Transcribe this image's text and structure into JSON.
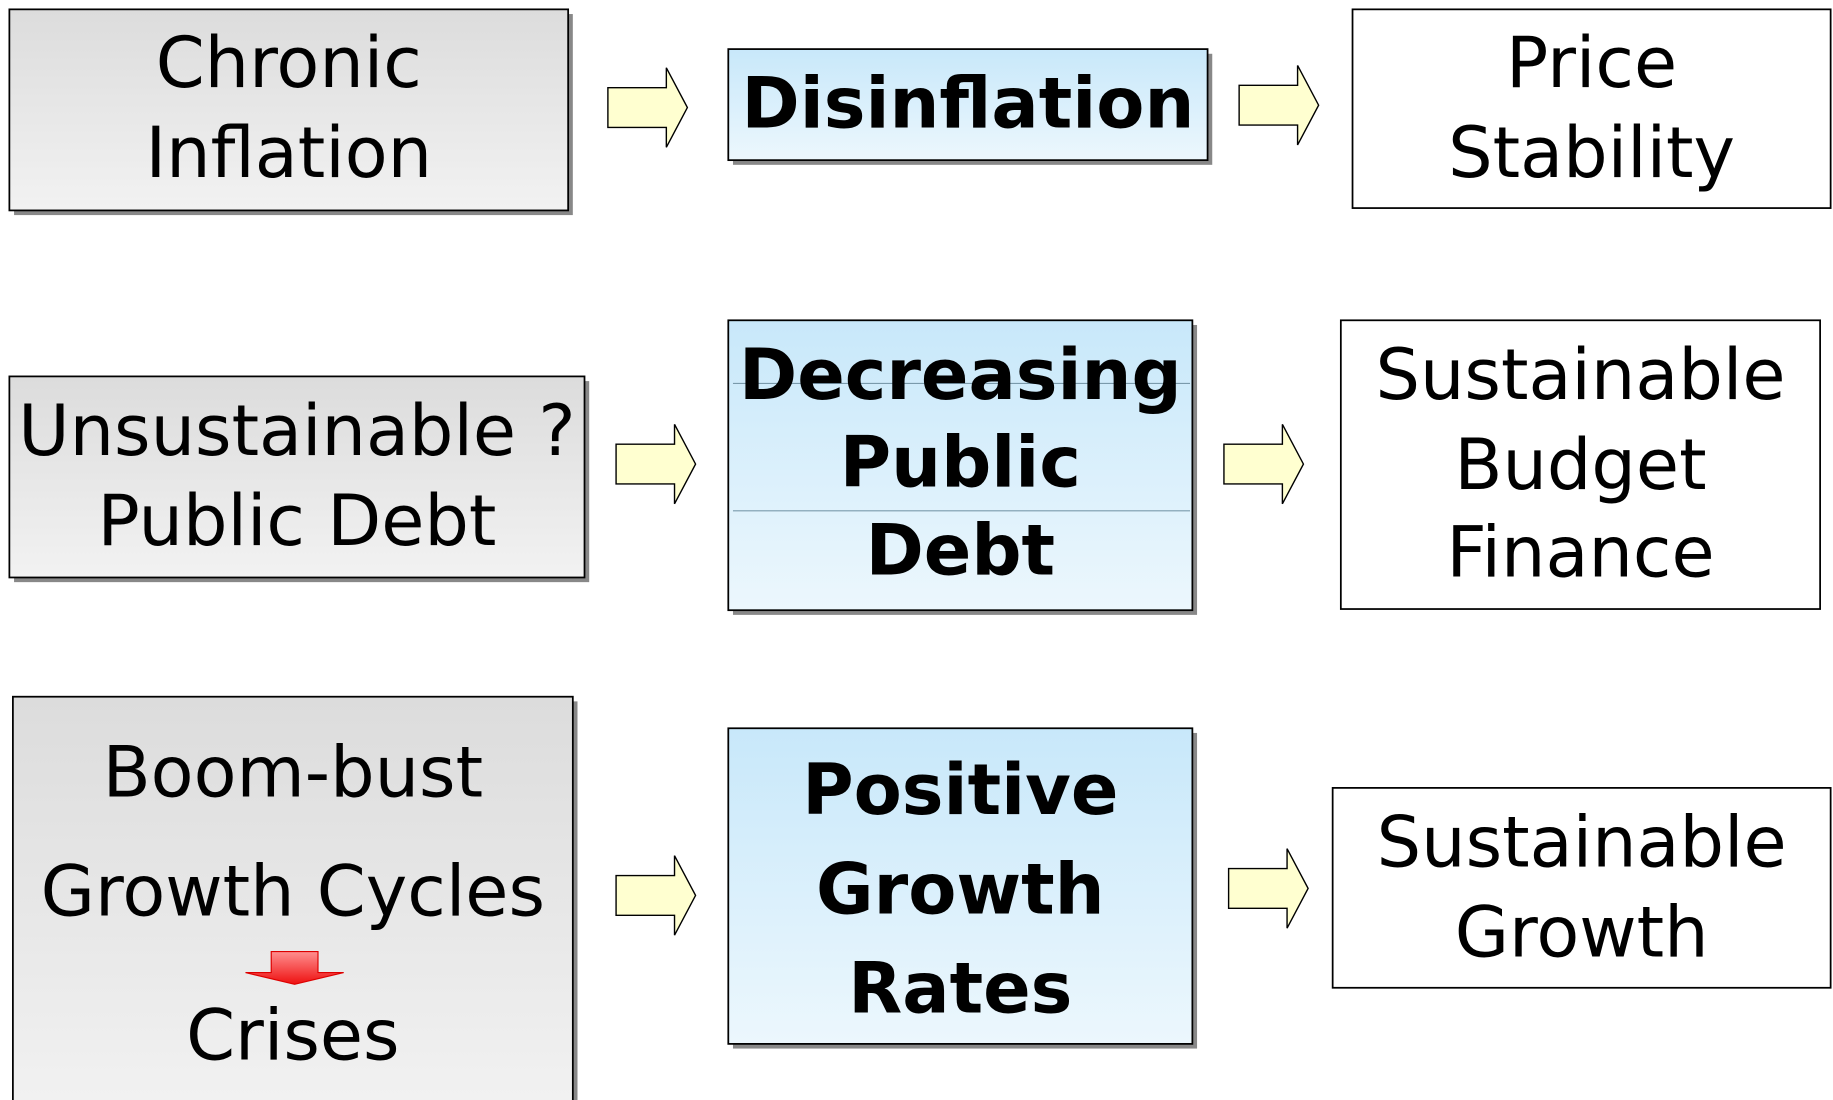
{
  "rows": [
    {
      "problem": [
        "Chronic",
        "Inflation"
      ],
      "policy": [
        "Disinflation"
      ],
      "outcome": [
        "Price",
        "Stability"
      ]
    },
    {
      "problem": [
        "Unsustainable ?",
        "Public Debt"
      ],
      "policy": [
        "Decreasing",
        "Public",
        "Debt"
      ],
      "outcome": [
        "Sustainable",
        "Budget",
        "Finance"
      ]
    },
    {
      "problem": [
        "Boom-bust",
        "Growth Cycles",
        "Crises"
      ],
      "policy": [
        "Positive",
        "Growth",
        "Rates"
      ],
      "outcome": [
        "Sustainable",
        "Growth"
      ]
    }
  ]
}
